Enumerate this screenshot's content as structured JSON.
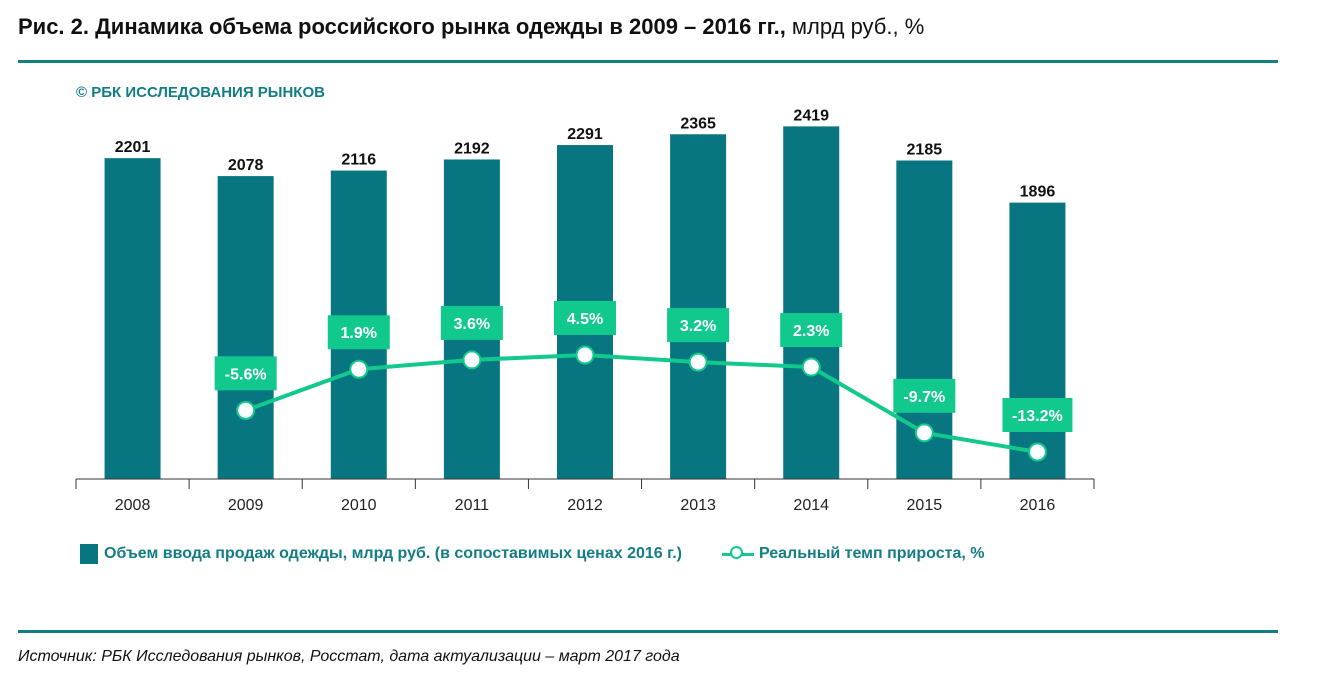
{
  "header": {
    "title_bold": "Рис. 2. Динамика объема российского рынка одежды в 2009 – 2016 гг.,",
    "title_regular": " млрд руб., %",
    "copyright": "© РБК ИССЛЕДОВАНИЯ РЫНКОВ"
  },
  "footer": {
    "source": "Источник: РБК Исследования рынков, Росстат, дата актуализации – март 2017 года"
  },
  "colors": {
    "bar": "#087680",
    "line": "#11c98d",
    "label_box": "#11c98d",
    "rule": "#137d85"
  },
  "chart_data": {
    "type": "bar",
    "title": "Динамика объема российского рынка одежды в 2009 – 2016 гг.",
    "xlabel": "",
    "ylabel": "",
    "categories": [
      "2008",
      "2009",
      "2010",
      "2011",
      "2012",
      "2013",
      "2014",
      "2015",
      "2016"
    ],
    "series": [
      {
        "name": "Объем ввода продаж одежды, млрд руб. (в сопоставимых ценах 2016 г.)",
        "type": "bar",
        "values": [
          2201,
          2078,
          2116,
          2192,
          2291,
          2365,
          2419,
          2185,
          1896
        ],
        "labels": [
          "2201",
          "2078",
          "2116",
          "2192",
          "2291",
          "2365",
          "2419",
          "2185",
          "1896"
        ]
      },
      {
        "name": "Реальный темп прироста, %",
        "type": "line",
        "values": [
          null,
          -5.6,
          1.9,
          3.6,
          4.5,
          3.2,
          2.3,
          -9.7,
          -13.2
        ],
        "labels": [
          "",
          "-5.6%",
          "1.9%",
          "3.6%",
          "4.5%",
          "3.2%",
          "2.3%",
          "-9.7%",
          "-13.2%"
        ]
      }
    ],
    "bar_ylim": [
      0,
      2600
    ],
    "line_ylim": [
      -25,
      12
    ],
    "grid": false,
    "legend": "bottom"
  }
}
